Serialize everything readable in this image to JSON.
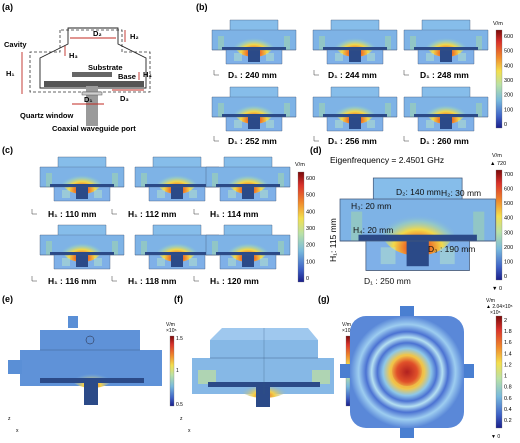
{
  "panel_labels": {
    "a": "(a)",
    "b": "(b)",
    "c": "(c)",
    "d": "(d)",
    "e": "(e)",
    "f": "(f)",
    "g": "(g)"
  },
  "schematic": {
    "cavity": "Cavity",
    "d2": "D₂",
    "h2": "H₂",
    "h3": "H₃",
    "h1": "H₁",
    "substrate": "Substrate",
    "base": "Base",
    "h4": "H₄",
    "d1": "D₁",
    "d3": "D₃",
    "quartz": "Quartz window",
    "coax": "Coaxial waveguide port"
  },
  "panel_b": {
    "unit": "V/m",
    "ticks": [
      "600",
      "500",
      "400",
      "300",
      "200",
      "100",
      "0"
    ],
    "captions": [
      "D₁ : 240 mm",
      "D₁ : 244 mm",
      "D₁ : 248 mm",
      "D₁ : 252 mm",
      "D₁ : 256 mm",
      "D₁ : 260 mm"
    ]
  },
  "panel_c": {
    "unit": "V/m",
    "ticks": [
      "600",
      "500",
      "400",
      "300",
      "200",
      "100",
      "0"
    ],
    "captions": [
      "H₁ : 110 mm",
      "H₁ : 112 mm",
      "H₁ : 114 mm",
      "H₁ : 116 mm",
      "H₁ : 118 mm",
      "H₁ : 120 mm"
    ]
  },
  "panel_d": {
    "title": "Eigenfrequency = 2.4501 GHz",
    "unit": "V/m",
    "top": "▲ 720",
    "bottom": "▼ 0",
    "ticks": [
      "700",
      "600",
      "500",
      "400",
      "300",
      "200",
      "100",
      "0"
    ],
    "dims": {
      "d2": "D₂: 140 mm",
      "h2": "H₂: 30 mm",
      "h3": "H₃: 20 mm",
      "h4": "H₄: 20 mm",
      "d3": "D₃ : 190 mm",
      "h1": "H₁: 115 mm",
      "d1": "D₁ : 250 mm"
    }
  },
  "panel_g": {
    "unit": "V/m",
    "top": "▲ 2.04×10⁵",
    "exp": "×10⁵",
    "bottom": "▼ 0",
    "ticks": [
      "2",
      "1.8",
      "1.6",
      "1.4",
      "1.2",
      "1",
      "0.8",
      "0.6",
      "0.4",
      "0.2"
    ]
  },
  "side_bars": {
    "unit": "V/m",
    "exp": "×10⁵",
    "t1": "1.5",
    "t2": "1",
    "t3": "0.5"
  },
  "axes": {
    "z": "z",
    "x": "x"
  },
  "colors": {
    "accent_red": "#d03a2c",
    "field_blue": "#5a8fd6",
    "metal": "#2b4a88"
  }
}
